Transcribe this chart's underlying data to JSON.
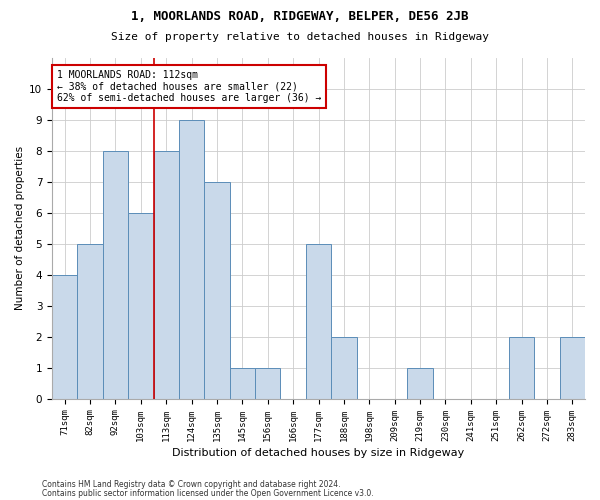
{
  "title": "1, MOORLANDS ROAD, RIDGEWAY, BELPER, DE56 2JB",
  "subtitle": "Size of property relative to detached houses in Ridgeway",
  "xlabel": "Distribution of detached houses by size in Ridgeway",
  "ylabel": "Number of detached properties",
  "footnote1": "Contains HM Land Registry data © Crown copyright and database right 2024.",
  "footnote2": "Contains public sector information licensed under the Open Government Licence v3.0.",
  "annotation_line1": "1 MOORLANDS ROAD: 112sqm",
  "annotation_line2": "← 38% of detached houses are smaller (22)",
  "annotation_line3": "62% of semi-detached houses are larger (36) →",
  "categories": [
    "71sqm",
    "82sqm",
    "92sqm",
    "103sqm",
    "113sqm",
    "124sqm",
    "135sqm",
    "145sqm",
    "156sqm",
    "166sqm",
    "177sqm",
    "188sqm",
    "198sqm",
    "209sqm",
    "219sqm",
    "230sqm",
    "241sqm",
    "251sqm",
    "262sqm",
    "272sqm",
    "283sqm"
  ],
  "values": [
    4,
    5,
    8,
    6,
    8,
    9,
    7,
    1,
    1,
    0,
    5,
    2,
    0,
    0,
    1,
    0,
    0,
    0,
    2,
    0,
    2
  ],
  "bar_color": "#c9d9ea",
  "bar_edge_color": "#5b8db8",
  "property_line_x": 3.5,
  "property_line_color": "#cc0000",
  "annotation_box_color": "#cc0000",
  "background_color": "#ffffff",
  "grid_color": "#cccccc",
  "ylim": [
    0,
    11
  ],
  "yticks": [
    0,
    1,
    2,
    3,
    4,
    5,
    6,
    7,
    8,
    9,
    10,
    11
  ]
}
